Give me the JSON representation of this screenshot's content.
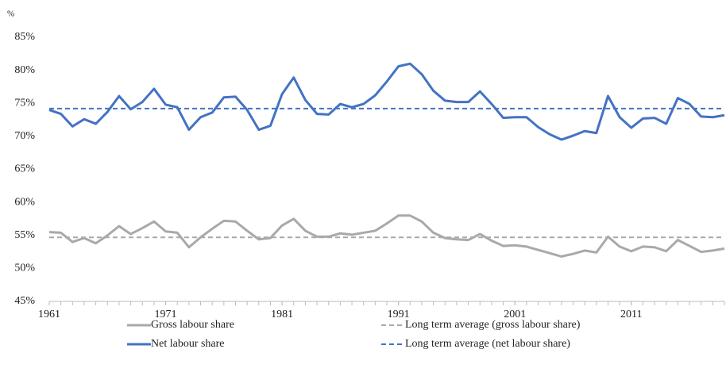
{
  "chart_data": {
    "type": "line",
    "y_label": "%",
    "x": [
      1961,
      1962,
      1963,
      1964,
      1965,
      1966,
      1967,
      1968,
      1969,
      1970,
      1971,
      1972,
      1973,
      1974,
      1975,
      1976,
      1977,
      1978,
      1979,
      1980,
      1981,
      1982,
      1983,
      1984,
      1985,
      1986,
      1987,
      1988,
      1989,
      1990,
      1991,
      1992,
      1993,
      1994,
      1995,
      1996,
      1997,
      1998,
      1999,
      2000,
      2001,
      2002,
      2003,
      2004,
      2005,
      2006,
      2007,
      2008,
      2009,
      2010,
      2011,
      2012,
      2013,
      2014,
      2015,
      2016,
      2017,
      2018,
      2019
    ],
    "series": [
      {
        "name": "Gross labour share",
        "color": "#a9a9a9",
        "values": [
          55.5,
          55.4,
          54.0,
          54.6,
          53.8,
          55.0,
          56.4,
          55.2,
          56.1,
          57.1,
          55.6,
          55.4,
          53.2,
          54.7,
          56.0,
          57.2,
          57.1,
          55.7,
          54.4,
          54.6,
          56.5,
          57.5,
          55.7,
          54.8,
          54.8,
          55.3,
          55.1,
          55.4,
          55.7,
          56.8,
          58.0,
          58.0,
          57.1,
          55.4,
          54.6,
          54.4,
          54.3,
          55.2,
          54.2,
          53.4,
          53.5,
          53.3,
          52.8,
          52.3,
          51.8,
          52.2,
          52.7,
          52.4,
          54.8,
          53.3,
          52.6,
          53.3,
          53.2,
          52.6,
          54.3,
          53.4,
          52.5,
          52.7,
          53.0
        ]
      },
      {
        "name": "Long term average (gross labour share)",
        "color": "#a9a9a9",
        "dashed": true,
        "value": 54.7
      },
      {
        "name": "Net labour share",
        "color": "#4472c4",
        "values": [
          74.0,
          73.4,
          71.5,
          72.6,
          71.9,
          73.7,
          76.1,
          74.1,
          75.2,
          77.2,
          74.8,
          74.4,
          71.0,
          72.9,
          73.6,
          75.9,
          76.0,
          74.0,
          71.0,
          71.6,
          76.4,
          78.9,
          75.5,
          73.4,
          73.3,
          74.9,
          74.4,
          74.9,
          76.2,
          78.3,
          80.6,
          81.0,
          79.4,
          76.9,
          75.4,
          75.2,
          75.2,
          76.8,
          74.9,
          72.8,
          72.9,
          72.9,
          71.4,
          70.3,
          69.5,
          70.1,
          70.8,
          70.5,
          76.1,
          72.9,
          71.3,
          72.7,
          72.8,
          71.9,
          75.8,
          74.9,
          73.0,
          72.9,
          73.2
        ]
      },
      {
        "name": "Long term average (net labour share)",
        "color": "#4472c4",
        "dashed": true,
        "value": 74.2
      }
    ],
    "xlim": [
      1961,
      2019
    ],
    "xticks": [
      1961,
      1971,
      1981,
      1991,
      2001,
      2011
    ],
    "ylim": [
      45,
      85
    ],
    "yticks": [
      {
        "value": 45,
        "label": "45%"
      },
      {
        "value": 50,
        "label": "50%"
      },
      {
        "value": 55,
        "label": "55%"
      },
      {
        "value": 60,
        "label": "60%"
      },
      {
        "value": 65,
        "label": "65%"
      },
      {
        "value": 70,
        "label": "70%"
      },
      {
        "value": 75,
        "label": "75%"
      },
      {
        "value": 80,
        "label": "80%"
      },
      {
        "value": 85,
        "label": "85%"
      }
    ]
  }
}
